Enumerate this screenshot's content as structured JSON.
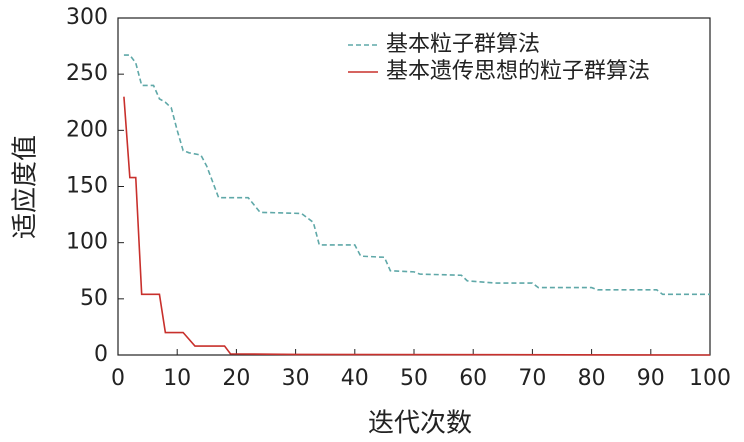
{
  "chart_data": {
    "type": "line",
    "x_label": "迭代次数",
    "y_label": "适应度值",
    "xlim": [
      0,
      100
    ],
    "ylim": [
      0,
      300
    ],
    "xticks": [
      0,
      10,
      20,
      30,
      40,
      50,
      60,
      70,
      80,
      90,
      100
    ],
    "yticks": [
      0,
      50,
      100,
      150,
      200,
      250,
      300
    ],
    "legend": "upper right",
    "series": [
      {
        "name": "基本粒子群算法",
        "color": "#5fa8a8",
        "dashed": true,
        "x": [
          1,
          2,
          3,
          4,
          6,
          7,
          8,
          9,
          10,
          11,
          12,
          14,
          15,
          17,
          22,
          24,
          31,
          33,
          34,
          40,
          41,
          45,
          46,
          50,
          51,
          58,
          59,
          64,
          70,
          71,
          80,
          81,
          91,
          92,
          100
        ],
        "values": [
          267,
          267,
          260,
          240,
          240,
          228,
          225,
          220,
          200,
          182,
          180,
          178,
          168,
          140,
          140,
          127,
          126,
          118,
          98,
          98,
          88,
          87,
          75,
          74,
          72,
          71,
          66,
          64,
          64,
          60,
          60,
          58,
          58,
          54,
          54
        ]
      },
      {
        "name": "基本遗传思想的粒子群算法",
        "color": "#c8302c",
        "dashed": false,
        "x": [
          1,
          2,
          3,
          4,
          7,
          8,
          11,
          13,
          18,
          19,
          30,
          100
        ],
        "values": [
          230,
          158,
          158,
          54,
          54,
          20,
          20,
          8,
          8,
          1,
          0.5,
          0
        ]
      }
    ]
  }
}
